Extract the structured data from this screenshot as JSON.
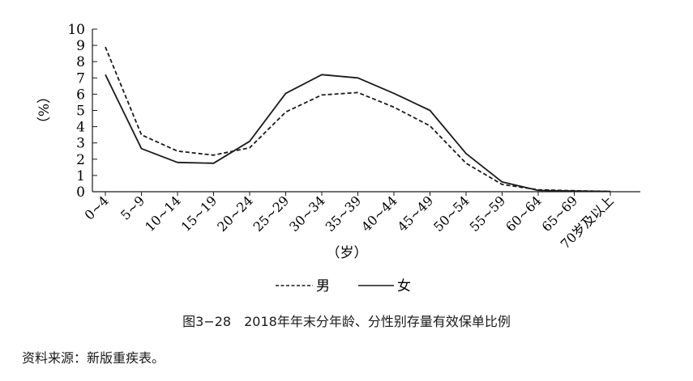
{
  "chart_data": {
    "type": "line",
    "categories": [
      "0~4",
      "5~9",
      "10~14",
      "15~19",
      "20~24",
      "25~29",
      "30~34",
      "35~39",
      "40~44",
      "45~49",
      "50~54",
      "55~59",
      "60~64",
      "65~69",
      "70岁及以上"
    ],
    "series": [
      {
        "name": "男",
        "style": "dashed",
        "color": "#1a1a1a",
        "values": [
          8.9,
          3.5,
          2.5,
          2.25,
          2.7,
          4.9,
          5.95,
          6.1,
          5.2,
          4.05,
          1.75,
          0.45,
          0.12,
          0.06,
          0.02
        ]
      },
      {
        "name": "女",
        "style": "solid",
        "color": "#1a1a1a",
        "values": [
          7.2,
          2.65,
          1.8,
          1.75,
          3.1,
          6.05,
          7.2,
          7.0,
          6.05,
          5.0,
          2.35,
          0.6,
          0.08,
          0.04,
          0.02
        ]
      }
    ],
    "ylim": [
      0,
      10
    ],
    "yticks": [
      0,
      1,
      2,
      3,
      4,
      5,
      6,
      7,
      8,
      9,
      10
    ],
    "ylabel": "（%）",
    "xlabel": "（岁）",
    "grid": false,
    "legend_position": "bottom-center"
  },
  "caption": "图3−28　2018年年末分年龄、分性别存量有效保单比例",
  "source": "资料来源：新版重疾表。"
}
